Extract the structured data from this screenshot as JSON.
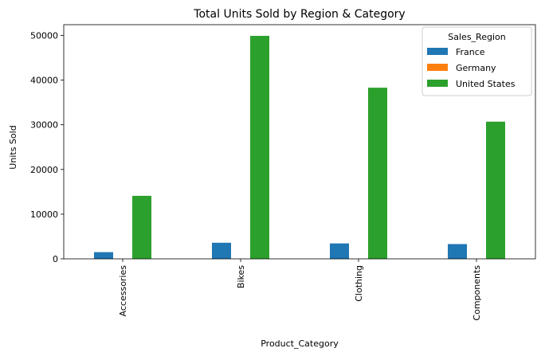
{
  "chart_data": {
    "type": "bar",
    "title": "Total Units Sold by Region & Category",
    "xlabel": "Product_Category",
    "ylabel": "Units Sold",
    "categories": [
      "Accessories",
      "Bikes",
      "Clothing",
      "Components"
    ],
    "series": [
      {
        "name": "France",
        "color": "#1f77b4",
        "values": [
          1500,
          3600,
          3450,
          3300
        ]
      },
      {
        "name": "Germany",
        "color": "#ff7f0e",
        "values": [
          0,
          0,
          0,
          0
        ]
      },
      {
        "name": "United States",
        "color": "#2ca02c",
        "values": [
          14100,
          49900,
          38300,
          30700
        ]
      }
    ],
    "ylim": [
      0,
      52400
    ],
    "yticks": [
      0,
      10000,
      20000,
      30000,
      40000,
      50000
    ],
    "grid": false,
    "legend": {
      "title": "Sales_Region",
      "placement": "top-right"
    }
  }
}
